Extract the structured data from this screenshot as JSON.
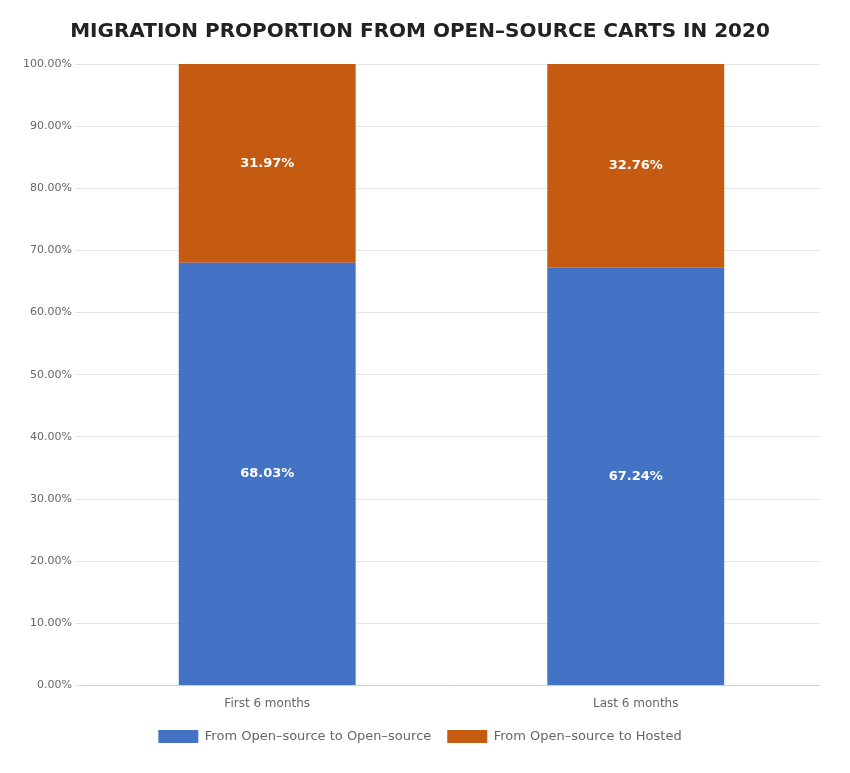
{
  "chart_data": {
    "type": "bar",
    "stacked": true,
    "title": "MIGRATION PROPORTION FROM OPEN–SOURCE CARTS IN 2020",
    "categories": [
      "First 6 months",
      "Last 6 months"
    ],
    "series": [
      {
        "name": "From Open–source to Open–source",
        "color": "#4472C4",
        "values": [
          68.03,
          67.24
        ],
        "value_labels": [
          "68.03%",
          "67.24%"
        ]
      },
      {
        "name": "From Open–source to Hosted",
        "color": "#C55A11",
        "values": [
          31.97,
          32.76
        ],
        "value_labels": [
          "31.97%",
          "32.76%"
        ]
      }
    ],
    "data_labels": true,
    "ylim": [
      0,
      100
    ],
    "yticks": [
      {
        "value": 0,
        "label": "0.00%"
      },
      {
        "value": 10,
        "label": "10.00%"
      },
      {
        "value": 20,
        "label": "20.00%"
      },
      {
        "value": 30,
        "label": "30.00%"
      },
      {
        "value": 40,
        "label": "40.00%"
      },
      {
        "value": 50,
        "label": "50.00%"
      },
      {
        "value": 60,
        "label": "60.00%"
      },
      {
        "value": 70,
        "label": "70.00%"
      },
      {
        "value": 80,
        "label": "80.00%"
      },
      {
        "value": 90,
        "label": "90.00%"
      },
      {
        "value": 100,
        "label": "100.00%"
      }
    ],
    "grid": true,
    "legend": "bottom"
  }
}
